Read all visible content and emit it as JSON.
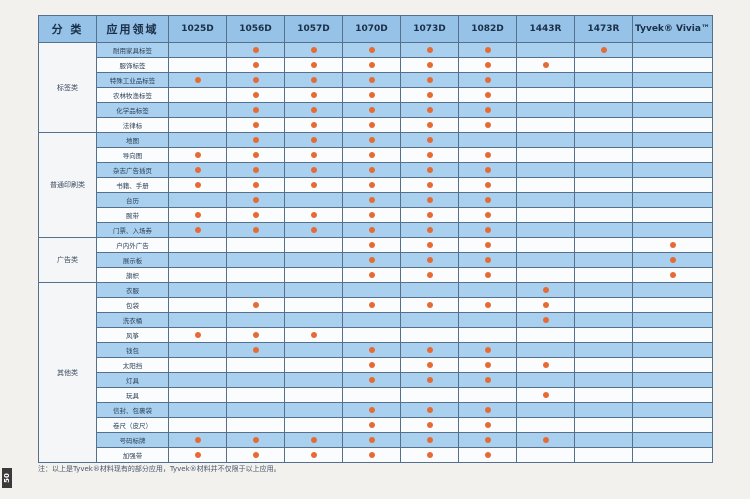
{
  "table": {
    "header": {
      "category": "分 类",
      "application": "应用领域",
      "products": [
        "1025D",
        "1056D",
        "1057D",
        "1070D",
        "1073D",
        "1082D",
        "1443R",
        "1473R",
        "Tyvek® Vivia™"
      ]
    },
    "groups": [
      {
        "name": "标签类",
        "rows": [
          {
            "label": "耐用家具标签",
            "marks": [
              0,
              1,
              1,
              1,
              1,
              1,
              0,
              1,
              0
            ]
          },
          {
            "label": "服饰标签",
            "marks": [
              0,
              1,
              1,
              1,
              1,
              1,
              1,
              0,
              0
            ]
          },
          {
            "label": "特殊工业品标签",
            "marks": [
              1,
              1,
              1,
              1,
              1,
              1,
              0,
              0,
              0
            ]
          },
          {
            "label": "农林牧渔标签",
            "marks": [
              0,
              1,
              1,
              1,
              1,
              1,
              0,
              0,
              0
            ]
          },
          {
            "label": "化学品标签",
            "marks": [
              0,
              1,
              1,
              1,
              1,
              1,
              0,
              0,
              0
            ]
          },
          {
            "label": "法律标",
            "marks": [
              0,
              1,
              1,
              1,
              1,
              1,
              0,
              0,
              0
            ]
          }
        ]
      },
      {
        "name": "普通印刷类",
        "rows": [
          {
            "label": "地图",
            "marks": [
              0,
              1,
              1,
              1,
              1,
              0,
              0,
              0,
              0
            ]
          },
          {
            "label": "导向图",
            "marks": [
              1,
              1,
              1,
              1,
              1,
              1,
              0,
              0,
              0
            ]
          },
          {
            "label": "杂志广告插页",
            "marks": [
              1,
              1,
              1,
              1,
              1,
              1,
              0,
              0,
              0
            ]
          },
          {
            "label": "书籍、手册",
            "marks": [
              1,
              1,
              1,
              1,
              1,
              1,
              0,
              0,
              0
            ]
          },
          {
            "label": "台历",
            "marks": [
              0,
              1,
              0,
              1,
              1,
              1,
              0,
              0,
              0
            ]
          },
          {
            "label": "腕带",
            "marks": [
              1,
              1,
              1,
              1,
              1,
              1,
              0,
              0,
              0
            ]
          },
          {
            "label": "门票、入场券",
            "marks": [
              1,
              1,
              1,
              1,
              1,
              1,
              0,
              0,
              0
            ]
          }
        ]
      },
      {
        "name": "广告类",
        "rows": [
          {
            "label": "户内外广告",
            "marks": [
              0,
              0,
              0,
              1,
              1,
              1,
              0,
              0,
              1
            ]
          },
          {
            "label": "展示板",
            "marks": [
              0,
              0,
              0,
              1,
              1,
              1,
              0,
              0,
              1
            ]
          },
          {
            "label": "旗帜",
            "marks": [
              0,
              0,
              0,
              1,
              1,
              1,
              0,
              0,
              1
            ]
          }
        ]
      },
      {
        "name": "其他类",
        "rows": [
          {
            "label": "衣服",
            "marks": [
              0,
              0,
              0,
              0,
              0,
              0,
              1,
              0,
              0
            ]
          },
          {
            "label": "包袋",
            "marks": [
              0,
              1,
              0,
              1,
              1,
              1,
              1,
              0,
              0
            ]
          },
          {
            "label": "洗衣桶",
            "marks": [
              0,
              0,
              0,
              0,
              0,
              0,
              1,
              0,
              0
            ]
          },
          {
            "label": "风筝",
            "marks": [
              1,
              1,
              1,
              0,
              0,
              0,
              0,
              0,
              0
            ]
          },
          {
            "label": "钱包",
            "marks": [
              0,
              1,
              0,
              1,
              1,
              1,
              0,
              0,
              0
            ]
          },
          {
            "label": "太阳挡",
            "marks": [
              0,
              0,
              0,
              1,
              1,
              1,
              1,
              0,
              0
            ]
          },
          {
            "label": "灯具",
            "marks": [
              0,
              0,
              0,
              1,
              1,
              1,
              0,
              0,
              0
            ]
          },
          {
            "label": "玩具",
            "marks": [
              0,
              0,
              0,
              0,
              0,
              0,
              1,
              0,
              0
            ]
          },
          {
            "label": "信封、包裹袋",
            "marks": [
              0,
              0,
              0,
              1,
              1,
              1,
              0,
              0,
              0
            ]
          },
          {
            "label": "卷尺（皮尺）",
            "marks": [
              0,
              0,
              0,
              1,
              1,
              1,
              0,
              0,
              0
            ]
          },
          {
            "label": "号码标牌",
            "marks": [
              1,
              1,
              1,
              1,
              1,
              1,
              1,
              0,
              0
            ]
          },
          {
            "label": "加强带",
            "marks": [
              1,
              1,
              1,
              1,
              1,
              1,
              0,
              0,
              0
            ]
          }
        ]
      }
    ]
  },
  "footnote": "注：以上是Tyvek®材料现有的部分应用，Tyvek®材料并不仅限于以上应用。",
  "page_number": "50",
  "colors": {
    "dot": "#e56a33",
    "header_bg": "#95c2e6",
    "row_alt_bg": "#a9d0ee",
    "grid_line": "#55708c"
  }
}
